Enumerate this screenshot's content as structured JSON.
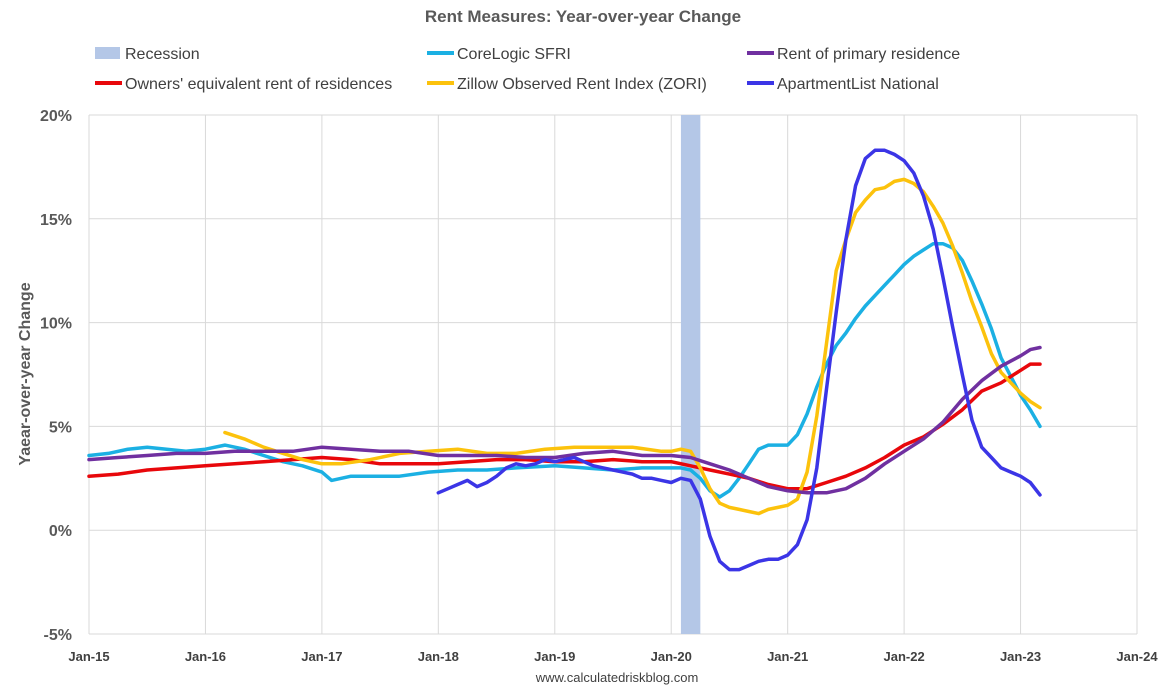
{
  "chart_data": {
    "type": "line",
    "title": "Rent Measures: Year-over-year Change",
    "ylabel": "Yaear-over-year Change",
    "xlabel": "",
    "source": "www.calculatedriskblog.com",
    "grid": true,
    "legend_placement": "top",
    "ylim": [
      -5,
      20
    ],
    "yticks": [
      -5,
      0,
      5,
      10,
      15,
      20
    ],
    "ytick_labels": [
      "-5%",
      "0%",
      "5%",
      "10%",
      "15%",
      "20%"
    ],
    "xlim": [
      "2015-01",
      "2024-01"
    ],
    "xticks": [
      "2015-01",
      "2016-01",
      "2017-01",
      "2018-01",
      "2019-01",
      "2020-01",
      "2021-01",
      "2022-01",
      "2023-01",
      "2024-01"
    ],
    "xtick_labels": [
      "Jan-15",
      "Jan-16",
      "Jan-17",
      "Jan-18",
      "Jan-19",
      "Jan-20",
      "Jan-21",
      "Jan-22",
      "Jan-23",
      "Jan-24"
    ],
    "recession": {
      "name": "Recession",
      "start": "2020-02",
      "end": "2020-04",
      "color": "#b4c7e7"
    },
    "series": [
      {
        "name": "CoreLogic SFRI",
        "color": "#1bb0e3",
        "points": [
          [
            "2015-01",
            3.6
          ],
          [
            "2015-03",
            3.7
          ],
          [
            "2015-05",
            3.9
          ],
          [
            "2015-07",
            4.0
          ],
          [
            "2015-09",
            3.9
          ],
          [
            "2015-11",
            3.8
          ],
          [
            "2016-01",
            3.9
          ],
          [
            "2016-03",
            4.1
          ],
          [
            "2016-05",
            3.9
          ],
          [
            "2016-07",
            3.6
          ],
          [
            "2016-09",
            3.3
          ],
          [
            "2016-11",
            3.1
          ],
          [
            "2017-01",
            2.8
          ],
          [
            "2017-02",
            2.4
          ],
          [
            "2017-04",
            2.6
          ],
          [
            "2017-06",
            2.6
          ],
          [
            "2017-09",
            2.6
          ],
          [
            "2017-12",
            2.8
          ],
          [
            "2018-03",
            2.9
          ],
          [
            "2018-06",
            2.9
          ],
          [
            "2018-09",
            3.0
          ],
          [
            "2019-01",
            3.1
          ],
          [
            "2019-04",
            3.0
          ],
          [
            "2019-07",
            2.9
          ],
          [
            "2019-10",
            3.0
          ],
          [
            "2020-01",
            3.0
          ],
          [
            "2020-02",
            3.0
          ],
          [
            "2020-03",
            2.9
          ],
          [
            "2020-04",
            2.5
          ],
          [
            "2020-05",
            1.9
          ],
          [
            "2020-06",
            1.6
          ],
          [
            "2020-07",
            1.9
          ],
          [
            "2020-08",
            2.5
          ],
          [
            "2020-09",
            3.2
          ],
          [
            "2020-10",
            3.9
          ],
          [
            "2020-11",
            4.1
          ],
          [
            "2020-12",
            4.1
          ],
          [
            "2021-01",
            4.1
          ],
          [
            "2021-02",
            4.6
          ],
          [
            "2021-03",
            5.6
          ],
          [
            "2021-04",
            6.9
          ],
          [
            "2021-05",
            8.0
          ],
          [
            "2021-06",
            8.9
          ],
          [
            "2021-07",
            9.5
          ],
          [
            "2021-08",
            10.2
          ],
          [
            "2021-09",
            10.8
          ],
          [
            "2021-10",
            11.3
          ],
          [
            "2021-11",
            11.8
          ],
          [
            "2021-12",
            12.3
          ],
          [
            "2022-01",
            12.8
          ],
          [
            "2022-02",
            13.2
          ],
          [
            "2022-03",
            13.5
          ],
          [
            "2022-04",
            13.8
          ],
          [
            "2022-05",
            13.8
          ],
          [
            "2022-06",
            13.6
          ],
          [
            "2022-07",
            13.0
          ],
          [
            "2022-08",
            12.0
          ],
          [
            "2022-09",
            10.9
          ],
          [
            "2022-10",
            9.7
          ],
          [
            "2022-11",
            8.3
          ],
          [
            "2022-12",
            7.4
          ],
          [
            "2023-01",
            6.5
          ],
          [
            "2023-02",
            5.8
          ],
          [
            "2023-03",
            5.0
          ]
        ]
      },
      {
        "name": "Owners' equivalent rent of residences",
        "color": "#e8070b",
        "points": [
          [
            "2015-01",
            2.6
          ],
          [
            "2015-04",
            2.7
          ],
          [
            "2015-07",
            2.9
          ],
          [
            "2015-10",
            3.0
          ],
          [
            "2016-01",
            3.1
          ],
          [
            "2016-04",
            3.2
          ],
          [
            "2016-07",
            3.3
          ],
          [
            "2016-10",
            3.4
          ],
          [
            "2017-01",
            3.5
          ],
          [
            "2017-04",
            3.4
          ],
          [
            "2017-07",
            3.2
          ],
          [
            "2017-10",
            3.2
          ],
          [
            "2018-01",
            3.2
          ],
          [
            "2018-04",
            3.3
          ],
          [
            "2018-07",
            3.4
          ],
          [
            "2018-10",
            3.4
          ],
          [
            "2019-01",
            3.3
          ],
          [
            "2019-04",
            3.3
          ],
          [
            "2019-07",
            3.4
          ],
          [
            "2019-10",
            3.3
          ],
          [
            "2020-01",
            3.3
          ],
          [
            "2020-03",
            3.1
          ],
          [
            "2020-05",
            2.9
          ],
          [
            "2020-07",
            2.7
          ],
          [
            "2020-09",
            2.5
          ],
          [
            "2020-11",
            2.2
          ],
          [
            "2021-01",
            2.0
          ],
          [
            "2021-03",
            2.0
          ],
          [
            "2021-05",
            2.3
          ],
          [
            "2021-07",
            2.6
          ],
          [
            "2021-09",
            3.0
          ],
          [
            "2021-11",
            3.5
          ],
          [
            "2022-01",
            4.1
          ],
          [
            "2022-03",
            4.5
          ],
          [
            "2022-05",
            5.1
          ],
          [
            "2022-07",
            5.8
          ],
          [
            "2022-09",
            6.7
          ],
          [
            "2022-11",
            7.1
          ],
          [
            "2023-01",
            7.7
          ],
          [
            "2023-02",
            8.0
          ],
          [
            "2023-03",
            8.0
          ]
        ]
      },
      {
        "name": "Zillow Observed Rent Index (ZORI)",
        "color": "#fcc20c",
        "points": [
          [
            "2016-03",
            4.7
          ],
          [
            "2016-05",
            4.4
          ],
          [
            "2016-07",
            4.0
          ],
          [
            "2016-09",
            3.7
          ],
          [
            "2016-11",
            3.4
          ],
          [
            "2017-01",
            3.2
          ],
          [
            "2017-03",
            3.2
          ],
          [
            "2017-06",
            3.4
          ],
          [
            "2017-09",
            3.7
          ],
          [
            "2017-12",
            3.8
          ],
          [
            "2018-03",
            3.9
          ],
          [
            "2018-06",
            3.7
          ],
          [
            "2018-09",
            3.7
          ],
          [
            "2018-12",
            3.9
          ],
          [
            "2019-03",
            4.0
          ],
          [
            "2019-06",
            4.0
          ],
          [
            "2019-09",
            4.0
          ],
          [
            "2019-12",
            3.8
          ],
          [
            "2020-01",
            3.8
          ],
          [
            "2020-02",
            3.9
          ],
          [
            "2020-03",
            3.8
          ],
          [
            "2020-04",
            3.0
          ],
          [
            "2020-05",
            2.0
          ],
          [
            "2020-06",
            1.3
          ],
          [
            "2020-07",
            1.1
          ],
          [
            "2020-08",
            1.0
          ],
          [
            "2020-09",
            0.9
          ],
          [
            "2020-10",
            0.8
          ],
          [
            "2020-11",
            1.0
          ],
          [
            "2020-12",
            1.1
          ],
          [
            "2021-01",
            1.2
          ],
          [
            "2021-02",
            1.5
          ],
          [
            "2021-03",
            2.8
          ],
          [
            "2021-04",
            5.5
          ],
          [
            "2021-05",
            9.0
          ],
          [
            "2021-06",
            12.5
          ],
          [
            "2021-07",
            14.0
          ],
          [
            "2021-08",
            15.3
          ],
          [
            "2021-09",
            15.9
          ],
          [
            "2021-10",
            16.4
          ],
          [
            "2021-11",
            16.5
          ],
          [
            "2021-12",
            16.8
          ],
          [
            "2022-01",
            16.9
          ],
          [
            "2022-02",
            16.7
          ],
          [
            "2022-03",
            16.3
          ],
          [
            "2022-04",
            15.6
          ],
          [
            "2022-05",
            14.8
          ],
          [
            "2022-06",
            13.7
          ],
          [
            "2022-07",
            12.4
          ],
          [
            "2022-08",
            11.0
          ],
          [
            "2022-09",
            9.8
          ],
          [
            "2022-10",
            8.5
          ],
          [
            "2022-11",
            7.6
          ],
          [
            "2022-12",
            7.1
          ],
          [
            "2023-01",
            6.6
          ],
          [
            "2023-02",
            6.2
          ],
          [
            "2023-03",
            5.9
          ]
        ]
      },
      {
        "name": "Rent of primary residence",
        "color": "#7030a0",
        "points": [
          [
            "2015-01",
            3.4
          ],
          [
            "2015-04",
            3.5
          ],
          [
            "2015-07",
            3.6
          ],
          [
            "2015-10",
            3.7
          ],
          [
            "2016-01",
            3.7
          ],
          [
            "2016-04",
            3.8
          ],
          [
            "2016-07",
            3.8
          ],
          [
            "2016-10",
            3.8
          ],
          [
            "2017-01",
            4.0
          ],
          [
            "2017-04",
            3.9
          ],
          [
            "2017-07",
            3.8
          ],
          [
            "2017-10",
            3.8
          ],
          [
            "2018-01",
            3.6
          ],
          [
            "2018-04",
            3.6
          ],
          [
            "2018-07",
            3.6
          ],
          [
            "2018-10",
            3.5
          ],
          [
            "2019-01",
            3.5
          ],
          [
            "2019-04",
            3.7
          ],
          [
            "2019-07",
            3.8
          ],
          [
            "2019-10",
            3.6
          ],
          [
            "2020-01",
            3.6
          ],
          [
            "2020-03",
            3.5
          ],
          [
            "2020-05",
            3.2
          ],
          [
            "2020-07",
            2.9
          ],
          [
            "2020-09",
            2.5
          ],
          [
            "2020-11",
            2.1
          ],
          [
            "2021-01",
            1.9
          ],
          [
            "2021-03",
            1.8
          ],
          [
            "2021-05",
            1.8
          ],
          [
            "2021-07",
            2.0
          ],
          [
            "2021-09",
            2.5
          ],
          [
            "2021-11",
            3.2
          ],
          [
            "2022-01",
            3.8
          ],
          [
            "2022-03",
            4.4
          ],
          [
            "2022-05",
            5.2
          ],
          [
            "2022-07",
            6.3
          ],
          [
            "2022-09",
            7.2
          ],
          [
            "2022-11",
            7.9
          ],
          [
            "2023-01",
            8.4
          ],
          [
            "2023-02",
            8.7
          ],
          [
            "2023-03",
            8.8
          ]
        ]
      },
      {
        "name": "ApartmentList National",
        "color": "#3b35e6",
        "points": [
          [
            "2018-01",
            1.8
          ],
          [
            "2018-02",
            2.0
          ],
          [
            "2018-03",
            2.2
          ],
          [
            "2018-04",
            2.4
          ],
          [
            "2018-05",
            2.1
          ],
          [
            "2018-06",
            2.3
          ],
          [
            "2018-07",
            2.6
          ],
          [
            "2018-08",
            3.0
          ],
          [
            "2018-09",
            3.2
          ],
          [
            "2018-10",
            3.1
          ],
          [
            "2018-11",
            3.2
          ],
          [
            "2018-12",
            3.4
          ],
          [
            "2019-01",
            3.3
          ],
          [
            "2019-02",
            3.4
          ],
          [
            "2019-03",
            3.5
          ],
          [
            "2019-04",
            3.3
          ],
          [
            "2019-05",
            3.1
          ],
          [
            "2019-06",
            3.0
          ],
          [
            "2019-07",
            2.9
          ],
          [
            "2019-08",
            2.8
          ],
          [
            "2019-09",
            2.7
          ],
          [
            "2019-10",
            2.5
          ],
          [
            "2019-11",
            2.5
          ],
          [
            "2019-12",
            2.4
          ],
          [
            "2020-01",
            2.3
          ],
          [
            "2020-02",
            2.5
          ],
          [
            "2020-03",
            2.4
          ],
          [
            "2020-04",
            1.5
          ],
          [
            "2020-05",
            -0.3
          ],
          [
            "2020-06",
            -1.5
          ],
          [
            "2020-07",
            -1.9
          ],
          [
            "2020-08",
            -1.9
          ],
          [
            "2020-09",
            -1.7
          ],
          [
            "2020-10",
            -1.5
          ],
          [
            "2020-11",
            -1.4
          ],
          [
            "2020-12",
            -1.4
          ],
          [
            "2021-01",
            -1.2
          ],
          [
            "2021-02",
            -0.7
          ],
          [
            "2021-03",
            0.5
          ],
          [
            "2021-04",
            3.0
          ],
          [
            "2021-05",
            6.8
          ],
          [
            "2021-06",
            10.5
          ],
          [
            "2021-07",
            14.0
          ],
          [
            "2021-08",
            16.6
          ],
          [
            "2021-09",
            17.9
          ],
          [
            "2021-10",
            18.3
          ],
          [
            "2021-11",
            18.3
          ],
          [
            "2021-12",
            18.1
          ],
          [
            "2022-01",
            17.8
          ],
          [
            "2022-02",
            17.2
          ],
          [
            "2022-03",
            16.1
          ],
          [
            "2022-04",
            14.5
          ],
          [
            "2022-05",
            12.2
          ],
          [
            "2022-06",
            9.8
          ],
          [
            "2022-07",
            7.5
          ],
          [
            "2022-08",
            5.3
          ],
          [
            "2022-09",
            4.0
          ],
          [
            "2022-10",
            3.5
          ],
          [
            "2022-11",
            3.0
          ],
          [
            "2022-12",
            2.8
          ],
          [
            "2023-01",
            2.6
          ],
          [
            "2023-02",
            2.3
          ],
          [
            "2023-03",
            1.7
          ]
        ]
      }
    ],
    "legend": [
      "Recession",
      "CoreLogic SFRI",
      "Rent of primary residence",
      "Owners' equivalent rent of residences",
      "Zillow Observed Rent Index (ZORI)",
      "ApartmentList National"
    ]
  }
}
